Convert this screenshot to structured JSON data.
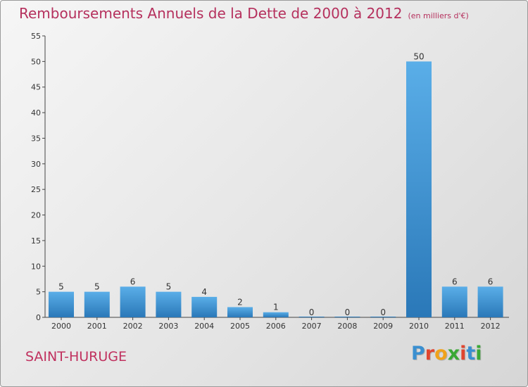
{
  "header": {
    "title": "Remboursements Annuels de la Dette de 2000 à 2012",
    "unit": "(en milliers d'€)"
  },
  "commune": "SAINT-HURUGE",
  "logo": {
    "letters": [
      "P",
      "r",
      "o",
      "x",
      "i",
      "t",
      "i"
    ],
    "colors": [
      "#3a8fd0",
      "#e0452f",
      "#f0a21a",
      "#3aa835",
      "#e0452f",
      "#3a8fd0",
      "#3aa835"
    ]
  },
  "chart_data": {
    "type": "bar",
    "title": "Remboursements Annuels de la Dette de 2000 à 2012",
    "subtitle": "(en milliers d'€)",
    "categories": [
      "2000",
      "2001",
      "2002",
      "2003",
      "2004",
      "2005",
      "2006",
      "2007",
      "2008",
      "2009",
      "2010",
      "2011",
      "2012"
    ],
    "values": [
      5,
      5,
      6,
      5,
      4,
      2,
      1,
      0,
      0,
      0,
      50,
      6,
      6
    ],
    "value_labels": [
      "5",
      "5",
      "6",
      "5",
      "4",
      "2",
      "1",
      "0",
      "0",
      "0",
      "50",
      "6",
      "6"
    ],
    "ylim": [
      0,
      55
    ],
    "yticks": [
      0,
      5,
      10,
      15,
      20,
      25,
      30,
      35,
      40,
      45,
      50,
      55
    ],
    "grid": false,
    "colors": {
      "bar_light": "#5aaee8",
      "bar_dark": "#2a78b8",
      "axis": "#444444",
      "text": "#333333"
    }
  }
}
